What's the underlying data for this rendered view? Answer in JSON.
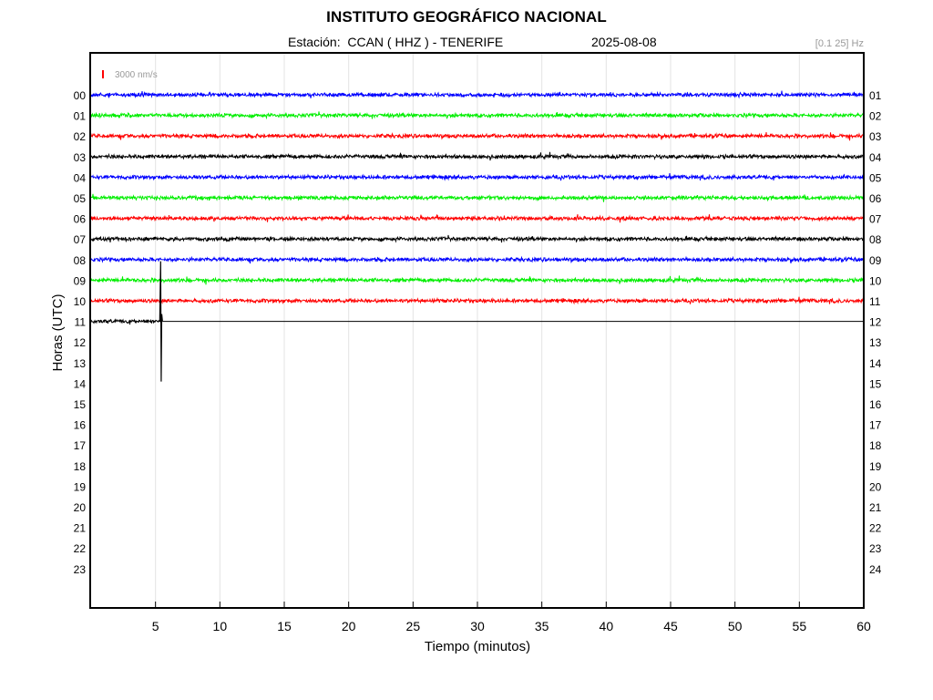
{
  "header": {
    "title": "INSTITUTO GEOGRÁFICO NACIONAL",
    "station": "Estación:  CCAN ( HHZ ) - TENERIFE",
    "date": "2025-08-08",
    "filter": "[0.1 25] Hz"
  },
  "chart_data": {
    "type": "line",
    "title": "INSTITUTO GEOGRÁFICO NACIONAL",
    "xlabel": "Tiempo (minutos)",
    "ylabel": "Horas (UTC)",
    "xlim": [
      0,
      60
    ],
    "x_ticks": [
      "5",
      "10",
      "15",
      "20",
      "25",
      "30",
      "35",
      "40",
      "45",
      "50",
      "55",
      "60"
    ],
    "y_ticks_left": [
      "00",
      "01",
      "02",
      "03",
      "04",
      "05",
      "06",
      "07",
      "08",
      "09",
      "10",
      "11",
      "12",
      "13",
      "14",
      "15",
      "16",
      "17",
      "18",
      "19",
      "20",
      "21",
      "22",
      "23"
    ],
    "y_ticks_right": [
      "01",
      "02",
      "03",
      "04",
      "05",
      "06",
      "07",
      "08",
      "09",
      "10",
      "11",
      "12",
      "13",
      "14",
      "15",
      "16",
      "17",
      "18",
      "19",
      "20",
      "21",
      "22",
      "23",
      "24"
    ],
    "grid": "vertical",
    "scale_label": "3000 nm/s",
    "scale_color": "#ff0000",
    "trace_colors": [
      "#0000ff",
      "#00ee00",
      "#ff0000",
      "#000000"
    ],
    "series": [
      {
        "hour": "00",
        "color": "#0000ff",
        "minutes": [
          0,
          60
        ]
      },
      {
        "hour": "01",
        "color": "#00ee00",
        "minutes": [
          0,
          60
        ]
      },
      {
        "hour": "02",
        "color": "#ff0000",
        "minutes": [
          0,
          60
        ]
      },
      {
        "hour": "03",
        "color": "#000000",
        "minutes": [
          0,
          60
        ]
      },
      {
        "hour": "04",
        "color": "#0000ff",
        "minutes": [
          0,
          60
        ]
      },
      {
        "hour": "05",
        "color": "#00ee00",
        "minutes": [
          0,
          60
        ]
      },
      {
        "hour": "06",
        "color": "#ff0000",
        "minutes": [
          0,
          60
        ]
      },
      {
        "hour": "07",
        "color": "#000000",
        "minutes": [
          0,
          60
        ]
      },
      {
        "hour": "08",
        "color": "#0000ff",
        "minutes": [
          0,
          60
        ]
      },
      {
        "hour": "09",
        "color": "#00ee00",
        "minutes": [
          0,
          60
        ]
      },
      {
        "hour": "10",
        "color": "#ff0000",
        "minutes": [
          0,
          60
        ]
      },
      {
        "hour": "11",
        "color": "#000000",
        "minutes": [
          0,
          5.4
        ]
      }
    ],
    "events": [
      {
        "hour": "11",
        "minute": 5.4
      }
    ]
  }
}
